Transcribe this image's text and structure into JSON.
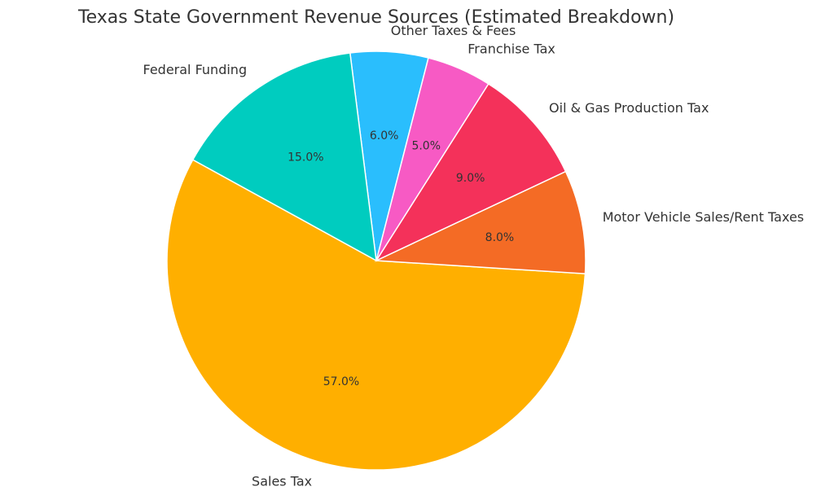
{
  "chart_data": {
    "type": "pie",
    "title": "Texas State Government Revenue Sources (Estimated Breakdown)",
    "slices": [
      {
        "label": "Sales Tax",
        "value": 57.0,
        "value_label": "57.0%",
        "color": "#FFAF00"
      },
      {
        "label": "Motor Vehicle Sales/Rent Taxes",
        "value": 8.0,
        "value_label": "8.0%",
        "color": "#F46B25"
      },
      {
        "label": "Oil & Gas Production Tax",
        "value": 9.0,
        "value_label": "9.0%",
        "color": "#F4315A"
      },
      {
        "label": "Franchise Tax",
        "value": 5.0,
        "value_label": "5.0%",
        "color": "#F75AC4"
      },
      {
        "label": "Other Taxes & Fees",
        "value": 6.0,
        "value_label": "6.0%",
        "color": "#2ABEFD"
      },
      {
        "label": "Federal Funding",
        "value": 15.0,
        "value_label": "15.0%",
        "color": "#00CCBF"
      }
    ],
    "legend": "none"
  }
}
